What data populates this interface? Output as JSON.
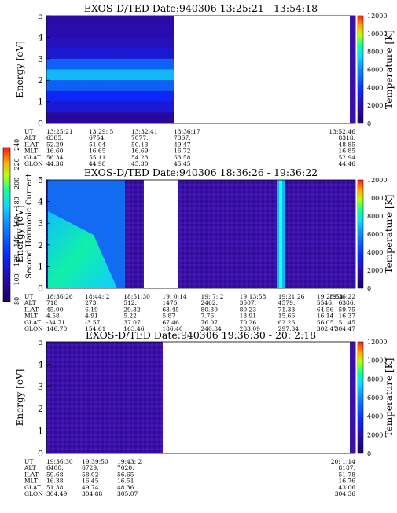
{
  "colorbar": {
    "label": "Second Harmonic Current",
    "ticks": [
      "80",
      "100",
      "120",
      "140",
      "160",
      "180",
      "200",
      "220",
      "240"
    ]
  },
  "panels": [
    {
      "title": "EXOS-D/TED   Date:940306  13:25:21 - 13:54:18",
      "ylabel": "Energy [eV]",
      "yticks": [
        "0",
        "1",
        "2",
        "3",
        "4",
        "5"
      ],
      "cbar_label": "Temperature [K]",
      "cbar_ticks": [
        "0",
        "2000",
        "4000",
        "6000",
        "8000",
        "10000",
        "12000"
      ],
      "row_labels": [
        "UT",
        "ALT",
        "ILAT",
        "MLT",
        "GLAT",
        "GLON"
      ],
      "columns": [
        {
          "t": "13:25:21",
          "rows": [
            "13:25:21",
            "6385.",
            "52.29",
            "16.60",
            "56.34",
            "44.38"
          ]
        },
        {
          "t": "13:29: 5",
          "rows": [
            "13:29: 5",
            "6754.",
            "51.04",
            "16.65",
            "55.11",
            "44.98"
          ]
        },
        {
          "t": "13:32:41",
          "rows": [
            "13:32:41",
            "7077.",
            "50.13",
            "16.69",
            "54.23",
            "45.30"
          ]
        },
        {
          "t": "13:36:17",
          "rows": [
            "13:36:17",
            "7367.",
            "49.47",
            "16.72",
            "53.58",
            "45.45"
          ]
        },
        {
          "t": "13:52:46",
          "rows": [
            "13:52:46",
            "8318.",
            "48.85",
            "16.85",
            "52.94",
            "44.46"
          ]
        }
      ]
    },
    {
      "title": "EXOS-D/TED   Date:940306  18:36:26 - 19:36:22",
      "ylabel": "Energy [eV]",
      "yticks": [
        "0",
        "1",
        "2",
        "3",
        "4",
        "5"
      ],
      "cbar_label": "Temperature [K]",
      "cbar_ticks": [
        "0",
        "2000",
        "4000",
        "6000",
        "8000",
        "10000",
        "12000"
      ],
      "row_labels": [
        "UT",
        "ALT",
        "ILAT",
        "MLT",
        "GLAT",
        "GLON"
      ],
      "columns": [
        {
          "t": "18:36:26",
          "rows": [
            "18:36:26",
            "718",
            "45.00",
            "4.58",
            "-34.71",
            "146.70"
          ]
        },
        {
          "t": "18:44: 2",
          "rows": [
            "18:44: 2",
            "273.",
            "6.19",
            "4.91",
            "-3.57",
            "154.61"
          ]
        },
        {
          "t": "18:51:30",
          "rows": [
            "18:51:30",
            "512.",
            "29.32",
            "5.22",
            "37.07",
            "163.46"
          ]
        },
        {
          "t": "19: 0:14",
          "rows": [
            "19: 0:14",
            "1475.",
            "63.45",
            "5.87",
            "67.46",
            "186.40"
          ]
        },
        {
          "t": "19: 7: 2",
          "rows": [
            "19: 7: 2",
            "2462.",
            "80.80",
            "7.76",
            "76.07",
            "240.84"
          ]
        },
        {
          "t": "19:13:58",
          "rows": [
            "19:13:58",
            "3507.",
            "80.23",
            "13.91",
            "70.26",
            "283.09"
          ]
        },
        {
          "t": "19:21:26",
          "rows": [
            "19:21:26",
            "4579.",
            "71.33",
            "15.66",
            "62.26",
            "297.34"
          ]
        },
        {
          "t": "19:28:54",
          "rows": [
            "19:28:54",
            "5546.",
            "64.56",
            "16.14",
            "56.05",
            "302.47"
          ]
        },
        {
          "t": "19:36:22",
          "rows": [
            "19:36:22",
            "6386.",
            "59.75",
            "16.37",
            "51.45",
            "304.47"
          ]
        }
      ]
    },
    {
      "title": "EXOS-D/TED   Date:940306  19:36:30 - 20: 2:18",
      "ylabel": "Energy [eV]",
      "yticks": [
        "0",
        "1",
        "2",
        "3",
        "4",
        "5"
      ],
      "cbar_label": "Temperature [K]",
      "cbar_ticks": [
        "0",
        "2000",
        "4000",
        "6000",
        "8000",
        "10000",
        "12000"
      ],
      "row_labels": [
        "UT",
        "ALT",
        "ILAT",
        "MLT",
        "GLAT",
        "GLON"
      ],
      "columns": [
        {
          "t": "19:36:30",
          "rows": [
            "19:36:30",
            "6400.",
            "59.68",
            "16.38",
            "51.38",
            "304.49"
          ]
        },
        {
          "t": "19:39:50",
          "rows": [
            "19:39:50",
            "6729.",
            "58.02",
            "16.45",
            "49.74",
            "304.88"
          ]
        },
        {
          "t": "19:43: 2",
          "rows": [
            "19:43: 2",
            "7020.",
            "56.65",
            "16.51",
            "48.36",
            "305.07"
          ]
        },
        {
          "t": "20: 1:14",
          "rows": [
            "20: 1:14",
            "8187.",
            "51.78",
            "16.76",
            "43.06",
            "304.36"
          ]
        }
      ]
    }
  ],
  "chart_data": [
    {
      "type": "heatmap",
      "title": "EXOS-D/TED   Date:940306  13:25:21 - 13:54:18",
      "xlabel": "UT",
      "ylabel": "Energy [eV]",
      "ylim": [
        0,
        5
      ],
      "colorbar": {
        "label": "Temperature [K]",
        "range": [
          0,
          12000
        ]
      },
      "x_ticks": [
        "13:25:21",
        "13:29: 5",
        "13:32:41",
        "13:36:17",
        "13:52:46"
      ],
      "data_coverage_ut": [
        [
          "13:25:21",
          "13:37:00"
        ],
        [
          "13:52:46",
          "13:54:18"
        ]
      ],
      "energy_levels": [
        0.25,
        0.75,
        1.25,
        1.75,
        2.25,
        2.75,
        3.25,
        3.75,
        4.25,
        4.75
      ],
      "temperature_profile_k": [
        1500,
        2800,
        3600,
        5200,
        7200,
        5200,
        2800,
        2200,
        2000,
        1800
      ],
      "grid": false
    },
    {
      "type": "heatmap",
      "title": "EXOS-D/TED   Date:940306  18:36:26 - 19:36:22",
      "xlabel": "UT",
      "ylabel": "Energy [eV]",
      "ylim": [
        0,
        5
      ],
      "colorbar": {
        "label": "Temperature [K]",
        "range": [
          0,
          12000
        ]
      },
      "x_ticks": [
        "18:36:26",
        "18:44: 2",
        "18:51:30",
        "19: 0:14",
        "19: 7: 2",
        "19:13:58",
        "19:21:26",
        "19:28:54",
        "19:36:22"
      ],
      "data_coverage_ut": [
        [
          "18:36:26",
          "18:54:00"
        ],
        [
          "19:00:14",
          "19:36:22"
        ]
      ],
      "features": [
        {
          "ut": [
            "18:36:26",
            "18:48:00"
          ],
          "temperature_k": [
            5500,
            9000
          ],
          "energy_ev": [
            0,
            3.5
          ]
        },
        {
          "ut": [
            "19:21:00",
            "19:22:30"
          ],
          "temperature_k": 9000,
          "energy_ev": [
            0,
            5
          ]
        }
      ],
      "grid": false
    },
    {
      "type": "heatmap",
      "title": "EXOS-D/TED   Date:940306  19:36:30 - 20: 2:18",
      "xlabel": "UT",
      "ylabel": "Energy [eV]",
      "ylim": [
        0,
        5
      ],
      "colorbar": {
        "label": "Temperature [K]",
        "range": [
          0,
          12000
        ]
      },
      "x_ticks": [
        "19:36:30",
        "19:39:50",
        "19:43: 2",
        "20: 1:14"
      ],
      "data_coverage_ut": [
        [
          "19:36:30",
          "19:47:00"
        ]
      ],
      "temperature_k_typical": 2000,
      "grid": false
    }
  ]
}
